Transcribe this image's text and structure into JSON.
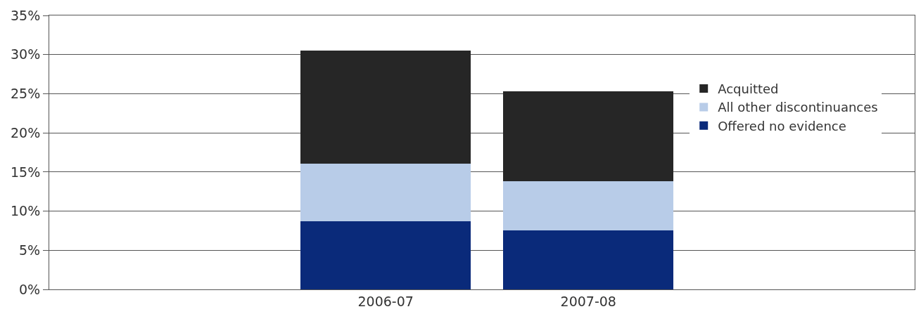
{
  "chart_data": {
    "type": "bar",
    "stacked": true,
    "categories": [
      "2006-07",
      "2007-08"
    ],
    "series": [
      {
        "name": "Offered no evidence",
        "color": "#0a2a7a",
        "values": [
          8.7,
          7.5
        ]
      },
      {
        "name": "All other discontinuances",
        "color": "#b8cce8",
        "values": [
          7.4,
          6.3
        ]
      },
      {
        "name": "Acquitted",
        "color": "#262626",
        "values": [
          14.4,
          11.5
        ]
      }
    ],
    "ylim": [
      0,
      35
    ],
    "yticks": [
      {
        "value": 0,
        "label": "0%"
      },
      {
        "value": 5,
        "label": "5%"
      },
      {
        "value": 10,
        "label": "10%"
      },
      {
        "value": 15,
        "label": "15%"
      },
      {
        "value": 20,
        "label": "20%"
      },
      {
        "value": 25,
        "label": "25%"
      },
      {
        "value": 30,
        "label": "30%"
      },
      {
        "value": 35,
        "label": "35%"
      }
    ],
    "grid": "y",
    "legend": "right"
  }
}
